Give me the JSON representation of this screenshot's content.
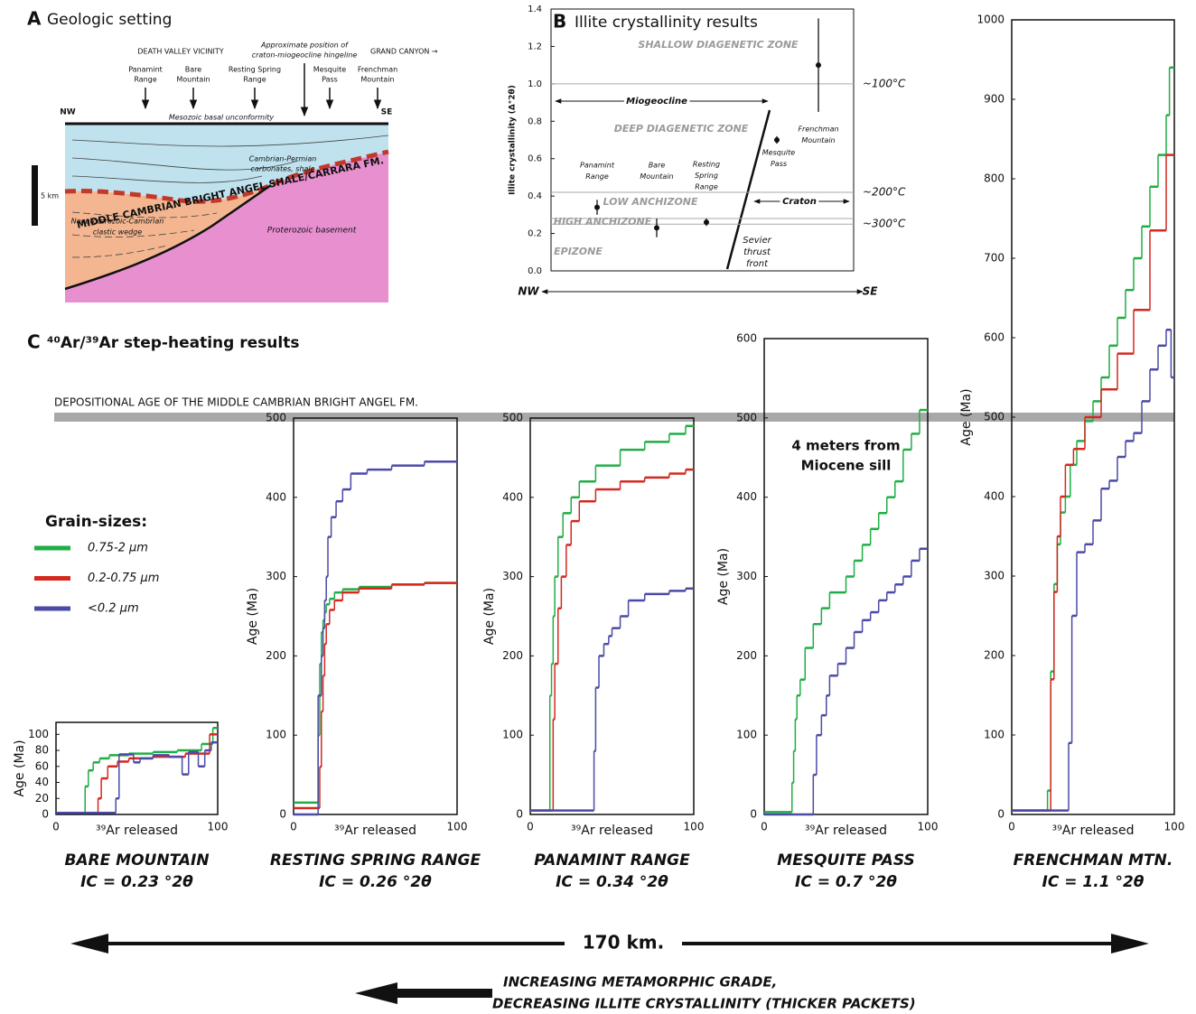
{
  "panel_a": {
    "label": "A",
    "title": "Geologic setting",
    "region_left": "DEATH VALLEY VICINITY",
    "hingeline": [
      "Approximate position of",
      "craton-miogeocline hingeline"
    ],
    "region_right": "GRAND CANYON →",
    "sites": [
      [
        "Panamint",
        "Range"
      ],
      [
        "Bare",
        "Mountain"
      ],
      [
        "Resting Spring",
        "Range"
      ],
      [
        "Mesquite",
        "Pass"
      ],
      [
        "Frenchman",
        "Mountain"
      ]
    ],
    "nw": "NW",
    "se": "SE",
    "unconformity": "Mesozoic basal unconformity",
    "carbonates": [
      "Cambrian-Permian",
      "carbonates, shale"
    ],
    "bright_angel": "MIDDLE CAMBRIAN BRIGHT ANGEL SHALE/CARRARA FM.",
    "wedge": [
      "Neoproterozoic-Cambrian",
      "clastic wedge"
    ],
    "basement": "Proterozoic basement",
    "scale": "5 km"
  },
  "panel_c": {
    "label": "C",
    "title": "⁴⁰Ar/³⁹Ar step-heating results",
    "depositional_age": {
      "label": "DEPOSITIONAL AGE OF THE MIDDLE CAMBRIAN BRIGHT ANGEL FM.",
      "value": 500
    },
    "legend": {
      "title": "Grain-sizes:",
      "entries": [
        {
          "name": "0.75-2 µm",
          "color": "#1fae45"
        },
        {
          "name": "0.2-0.75 µm",
          "color": "#d5281f"
        },
        {
          "name": "<0.2 µm",
          "color": "#4b4aa6"
        }
      ]
    },
    "distance": "170 km.",
    "grade": [
      "INCREASING METAMORPHIC GRADE,",
      "DECREASING ILLITE CRYSTALLINITY (THICKER PACKETS)"
    ]
  },
  "chart_data": [
    {
      "type": "scatter",
      "label": "B",
      "title": "Illite crystallinity results",
      "ylabel": "Illite crystallinity (Δ°2θ)",
      "xlabel_left": "NW",
      "xlabel_right": "SE",
      "categories": [
        [
          "Panamint",
          "Range"
        ],
        [
          "Bare",
          "Mountain"
        ],
        [
          "Resting",
          "Spring",
          "Range"
        ],
        [
          "Mesquite",
          "Pass"
        ],
        [
          "Frenchman",
          "Mountain"
        ]
      ],
      "values": [
        0.34,
        0.23,
        0.26,
        0.7,
        1.1
      ],
      "errors": [
        0.04,
        0.05,
        0.02,
        0.02,
        0.25
      ],
      "ylim": [
        0,
        1.4
      ],
      "yticks": [
        {
          "value": 0,
          "label": "0.0"
        },
        0.2,
        0.4,
        0.6,
        0.8,
        {
          "value": 1,
          "label": "1.0"
        },
        1.2,
        1.4
      ],
      "reference_lines": [
        {
          "value": 1.0,
          "label": "~100°C"
        },
        {
          "value": 0.42,
          "label": "~200°C"
        },
        {
          "value": 0.28
        },
        {
          "value": 0.25,
          "label": "~300°C"
        }
      ],
      "zones": [
        "SHALLOW DIAGENETIC ZONE",
        "DEEP DIAGENETIC ZONE",
        "LOW ANCHIZONE",
        "HIGH ANCHIZONE",
        "EPIZONE"
      ],
      "miogeocline": "Miogeocline",
      "craton": "Craton",
      "sevier": [
        "Sevier",
        "thrust",
        "front"
      ]
    },
    {
      "type": "step",
      "title": "BARE MOUNTAIN",
      "subtitle": "IC = 0.23 °2θ",
      "ylabel": "Age (Ma)",
      "xlabel": "³⁹Ar released",
      "xlim": [
        0,
        100
      ],
      "xticks": [
        0,
        100
      ],
      "ylim": [
        0,
        115
      ],
      "yticks": [
        0,
        20,
        40,
        60,
        80,
        100
      ],
      "series": [
        {
          "color": "#1fae45",
          "bins": [
            0,
            18,
            20,
            23,
            27,
            33,
            45,
            60,
            75,
            90,
            97,
            100
          ],
          "values": [
            2,
            35,
            55,
            65,
            70,
            74,
            76,
            78,
            80,
            88,
            108
          ]
        },
        {
          "color": "#d5281f",
          "bins": [
            0,
            26,
            28,
            32,
            38,
            45,
            60,
            80,
            95,
            100
          ],
          "values": [
            2,
            20,
            45,
            60,
            66,
            70,
            72,
            76,
            100
          ]
        },
        {
          "color": "#4b4aa6",
          "bins": [
            0,
            37,
            39,
            48,
            52,
            60,
            70,
            78,
            82,
            88,
            92,
            96,
            100
          ],
          "values": [
            2,
            20,
            75,
            65,
            70,
            74,
            72,
            50,
            78,
            60,
            80,
            90
          ]
        }
      ]
    },
    {
      "type": "step",
      "title": "RESTING SPRING RANGE",
      "subtitle": "IC = 0.26 °2θ",
      "ylabel": "Age (Ma)",
      "xlabel": "³⁹Ar released",
      "xlim": [
        0,
        100
      ],
      "xticks": [
        0,
        100
      ],
      "ylim": [
        0,
        500
      ],
      "yticks": [
        0,
        100,
        200,
        300,
        400,
        500
      ],
      "series": [
        {
          "color": "#1fae45",
          "bins": [
            0,
            15,
            16,
            17,
            18,
            19,
            20,
            22,
            25,
            30,
            40,
            60,
            80,
            100
          ],
          "values": [
            15,
            100,
            190,
            230,
            245,
            255,
            265,
            272,
            280,
            284,
            287,
            290,
            292
          ]
        },
        {
          "color": "#d5281f",
          "bins": [
            0,
            16,
            17,
            18,
            19,
            20,
            22,
            25,
            30,
            40,
            60,
            80,
            100
          ],
          "values": [
            8,
            60,
            130,
            175,
            215,
            240,
            258,
            270,
            280,
            285,
            290,
            292
          ]
        },
        {
          "color": "#4b4aa6",
          "bins": [
            0,
            15,
            17,
            18,
            19,
            20,
            21,
            23,
            26,
            30,
            35,
            45,
            60,
            80,
            100
          ],
          "values": [
            0,
            150,
            200,
            235,
            270,
            300,
            350,
            375,
            395,
            410,
            430,
            435,
            440,
            445
          ]
        }
      ]
    },
    {
      "type": "step",
      "title": "PANAMINT RANGE",
      "subtitle": "IC = 0.34 °2θ",
      "ylabel": "Age (Ma)",
      "xlabel": "³⁹Ar released",
      "xlim": [
        0,
        100
      ],
      "xticks": [
        0,
        100
      ],
      "ylim": [
        0,
        500
      ],
      "yticks": [
        0,
        100,
        200,
        300,
        400,
        500
      ],
      "series": [
        {
          "color": "#1fae45",
          "bins": [
            0,
            12,
            13,
            14,
            15,
            17,
            20,
            25,
            30,
            40,
            55,
            70,
            85,
            95,
            100
          ],
          "values": [
            5,
            150,
            190,
            250,
            300,
            350,
            380,
            400,
            420,
            440,
            460,
            470,
            480,
            490
          ]
        },
        {
          "color": "#d5281f",
          "bins": [
            0,
            14,
            15,
            17,
            19,
            22,
            25,
            30,
            40,
            55,
            70,
            85,
            95,
            100
          ],
          "values": [
            5,
            120,
            190,
            260,
            300,
            340,
            370,
            395,
            410,
            420,
            425,
            430,
            435
          ]
        },
        {
          "color": "#4b4aa6",
          "bins": [
            0,
            39,
            40,
            42,
            45,
            48,
            50,
            55,
            60,
            70,
            85,
            95,
            100
          ],
          "values": [
            5,
            80,
            160,
            200,
            215,
            225,
            235,
            250,
            270,
            278,
            282,
            285
          ]
        }
      ]
    },
    {
      "type": "step",
      "title": "MESQUITE PASS",
      "subtitle": "IC = 0.7 °2θ",
      "ylabel": "Age (Ma)",
      "xlabel": "³⁹Ar released",
      "annotation": [
        "4 meters from",
        "Miocene sill"
      ],
      "xlim": [
        0,
        100
      ],
      "xticks": [
        0,
        100
      ],
      "ylim": [
        0,
        600
      ],
      "yticks": [
        0,
        100,
        200,
        300,
        400,
        500,
        600
      ],
      "series": [
        {
          "color": "#1fae45",
          "bins": [
            0,
            17,
            18,
            19,
            20,
            22,
            25,
            30,
            35,
            40,
            50,
            55,
            60,
            65,
            70,
            75,
            80,
            85,
            90,
            95,
            100
          ],
          "values": [
            3,
            40,
            80,
            120,
            150,
            170,
            210,
            240,
            260,
            280,
            300,
            320,
            340,
            360,
            380,
            400,
            420,
            460,
            480,
            510
          ]
        },
        {
          "color": "#4b4aa6",
          "bins": [
            0,
            30,
            32,
            35,
            38,
            40,
            45,
            50,
            55,
            60,
            65,
            70,
            75,
            80,
            85,
            90,
            95,
            100
          ],
          "values": [
            0,
            50,
            100,
            125,
            150,
            175,
            190,
            210,
            230,
            245,
            255,
            270,
            280,
            290,
            300,
            320,
            335
          ]
        }
      ]
    },
    {
      "type": "step",
      "title": "FRENCHMAN MTN.",
      "subtitle": "IC = 1.1 °2θ",
      "ylabel": "Age (Ma)",
      "xlabel": "³⁹Ar released",
      "xlim": [
        0,
        100
      ],
      "xticks": [
        0,
        100
      ],
      "ylim": [
        0,
        1000
      ],
      "yticks": [
        0,
        100,
        200,
        300,
        400,
        500,
        600,
        700,
        800,
        900,
        1000
      ],
      "series": [
        {
          "color": "#1fae45",
          "bins": [
            0,
            22,
            24,
            26,
            28,
            30,
            33,
            36,
            40,
            45,
            50,
            55,
            60,
            65,
            70,
            75,
            80,
            85,
            90,
            95,
            97,
            100
          ],
          "values": [
            5,
            30,
            180,
            290,
            340,
            380,
            400,
            440,
            470,
            495,
            520,
            550,
            590,
            625,
            660,
            700,
            740,
            790,
            830,
            880,
            940
          ]
        },
        {
          "color": "#d5281f",
          "bins": [
            0,
            24,
            26,
            28,
            30,
            33,
            38,
            45,
            55,
            65,
            75,
            85,
            95,
            100
          ],
          "values": [
            5,
            170,
            280,
            350,
            400,
            440,
            460,
            500,
            535,
            580,
            635,
            735,
            830
          ]
        },
        {
          "color": "#4b4aa6",
          "bins": [
            0,
            35,
            37,
            40,
            45,
            50,
            55,
            60,
            65,
            70,
            75,
            80,
            85,
            90,
            95,
            98,
            100
          ],
          "values": [
            5,
            90,
            250,
            330,
            340,
            370,
            410,
            420,
            450,
            470,
            480,
            520,
            560,
            590,
            610,
            550
          ]
        }
      ]
    }
  ]
}
